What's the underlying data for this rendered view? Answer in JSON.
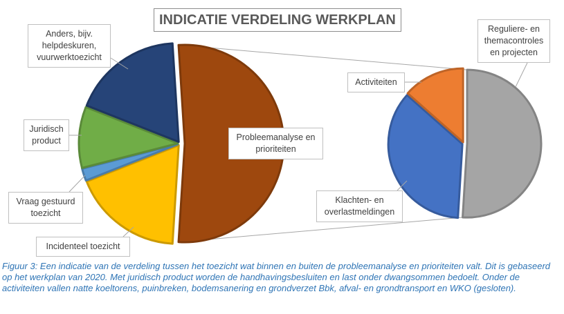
{
  "chart_data": {
    "type": "pie",
    "pie_of_pie": true,
    "title": "INDICATIE VERDELING WERKPLAN",
    "legend_shown": false,
    "main_pie": {
      "categories": [
        "Probleemanalyse en prioriteiten",
        "Incidenteel toezicht",
        "Vraag gestuurd toezicht",
        "Juridisch product",
        "Anders, bijv. helpdeskuren, vuurwerktoezicht"
      ],
      "values": [
        52,
        18,
        2,
        10,
        18
      ],
      "colors": [
        "#9E480E",
        "#FFC000",
        "#5B9BD5",
        "#70AD47",
        "#264478"
      ]
    },
    "secondary_pie": {
      "categories": [
        "Reguliere- en themacontroles en projecten",
        "Klachten- en overlastmeldingen",
        "Activiteiten"
      ],
      "values": [
        26.5,
        18.5,
        7
      ],
      "colors": [
        "#A5A5A5",
        "#4472C4",
        "#ED7D31"
      ]
    }
  },
  "caption": "Figuur 3: Een indicatie van de verdeling tussen het toezicht wat binnen en buiten de probleemanalyse en prioriteiten valt. Dit is gebaseerd op het werkplan van 2020. Met juridisch product worden de handhavingsbesluiten en last onder dwangsommen bedoelt. Onder de activiteiten vallen natte koeltorens, puinbreken, bodemsanering en grondverzet Bbk, afval- en grondtransport en WKO (gesloten)."
}
